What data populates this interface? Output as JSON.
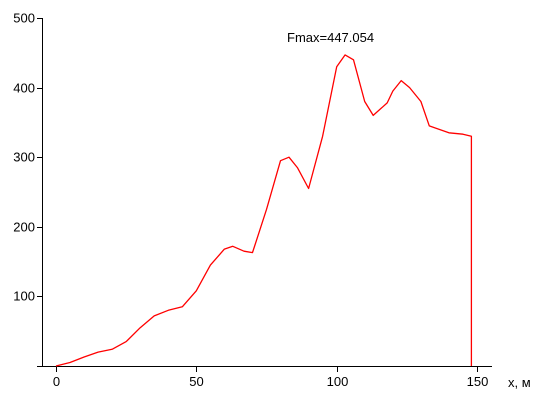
{
  "chart_data": {
    "type": "line",
    "annotation": "Fmax=447.054",
    "xlabel": "x, м",
    "ylabel": "",
    "xlim": [
      0,
      150
    ],
    "ylim": [
      0,
      500
    ],
    "x_ticks": [
      0,
      50,
      100,
      150
    ],
    "x_tick_labels": [
      "0",
      "50",
      "100",
      "150"
    ],
    "y_ticks": [
      0,
      100,
      200,
      300,
      400,
      500
    ],
    "y_tick_labels": [
      "",
      "100",
      "200",
      "300",
      "400",
      "500"
    ],
    "grid": false,
    "series": [
      {
        "color": "#ff0000",
        "x": [
          0,
          5,
          10,
          15,
          20,
          25,
          30,
          35,
          40,
          45,
          50,
          55,
          60,
          63,
          67,
          70,
          75,
          80,
          83,
          86,
          90,
          95,
          100,
          103,
          106,
          110,
          113,
          118,
          120,
          123,
          126,
          130,
          133,
          140,
          145,
          148,
          148
        ],
        "y": [
          0,
          5,
          13,
          20,
          24,
          35,
          55,
          72,
          80,
          85,
          108,
          145,
          168,
          172,
          165,
          163,
          225,
          295,
          300,
          285,
          255,
          330,
          430,
          447,
          440,
          380,
          360,
          378,
          395,
          410,
          400,
          380,
          345,
          335,
          333,
          330,
          0
        ]
      }
    ]
  }
}
